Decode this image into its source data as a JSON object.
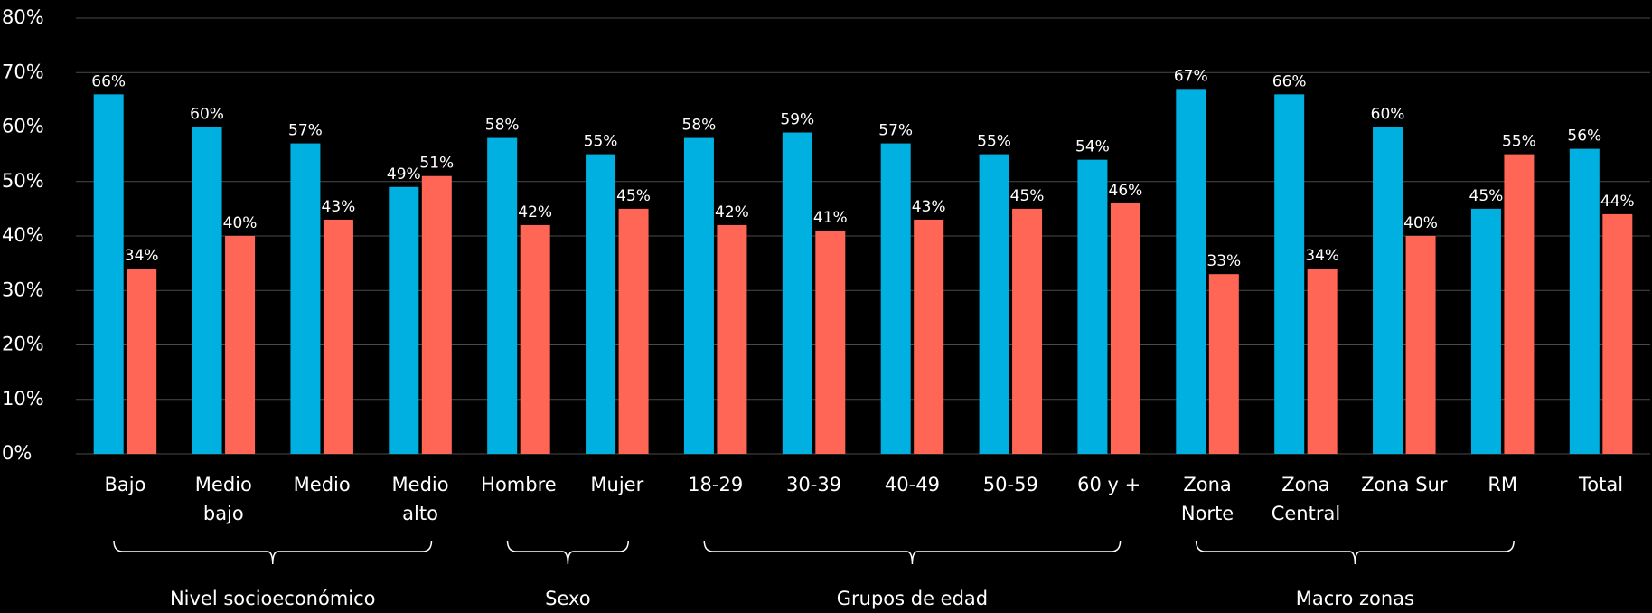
{
  "chart_data": {
    "type": "bar",
    "categories": [
      [
        "Bajo"
      ],
      [
        "Medio",
        "bajo"
      ],
      [
        "Medio"
      ],
      [
        "Medio",
        "alto"
      ],
      [
        "Hombre"
      ],
      [
        "Mujer"
      ],
      [
        "18-29"
      ],
      [
        "30-39"
      ],
      [
        "40-49"
      ],
      [
        "50-59"
      ],
      [
        "60 y +"
      ],
      [
        "Zona",
        "Norte"
      ],
      [
        "Zona",
        "Central"
      ],
      [
        "Zona Sur"
      ],
      [
        "RM"
      ],
      [
        "Total"
      ]
    ],
    "series": [
      {
        "color": "#00b0e0",
        "values": [
          66,
          60,
          57,
          49,
          58,
          55,
          58,
          59,
          57,
          55,
          54,
          67,
          66,
          60,
          45,
          56
        ],
        "value_labels": [
          "66%",
          "60%",
          "57%",
          "49%",
          "58%",
          "55%",
          "58%",
          "59%",
          "57%",
          "55%",
          "54%",
          "67%",
          "66%",
          "60%",
          "45%",
          "56%"
        ]
      },
      {
        "color": "#ff6655",
        "values": [
          34,
          40,
          43,
          51,
          42,
          45,
          42,
          41,
          43,
          45,
          46,
          33,
          34,
          40,
          55,
          44
        ],
        "value_labels": [
          "34%",
          "40%",
          "43%",
          "51%",
          "42%",
          "45%",
          "42%",
          "41%",
          "43%",
          "45%",
          "46%",
          "33%",
          "34%",
          "40%",
          "55%",
          "44%"
        ]
      }
    ],
    "groups": [
      {
        "label": "Nivel socioeconómico",
        "size": 4
      },
      {
        "label": "Sexo",
        "size": 2
      },
      {
        "label": "Grupos de edad",
        "size": 5
      },
      {
        "label": "Macro zonas",
        "size": 4
      }
    ],
    "ylim": [
      0,
      80
    ],
    "yticks": [
      {
        "value": 0,
        "label": "0%"
      },
      {
        "value": 10,
        "label": "10%"
      },
      {
        "value": 20,
        "label": "20%"
      },
      {
        "value": 30,
        "label": "30%"
      },
      {
        "value": 40,
        "label": "40%"
      },
      {
        "value": 50,
        "label": "50%"
      },
      {
        "value": 60,
        "label": "60%"
      },
      {
        "value": 70,
        "label": "70%"
      },
      {
        "value": 80,
        "label": "80%"
      }
    ],
    "grid": true
  }
}
